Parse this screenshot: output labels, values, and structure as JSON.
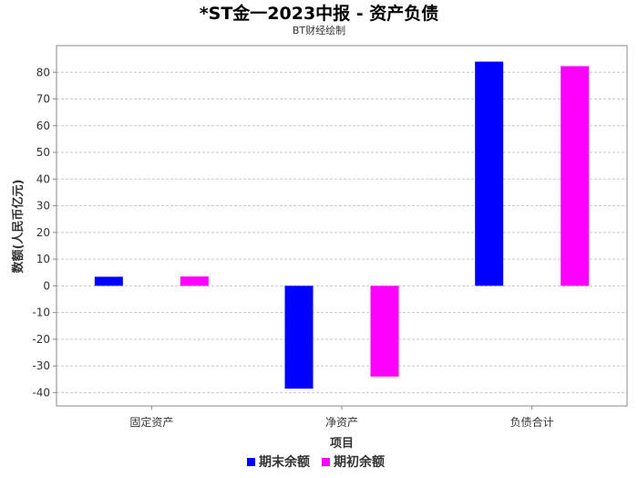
{
  "chart_data": {
    "type": "bar",
    "title": "*ST金一2023中报 - 资产负债",
    "subtitle": "BT财经绘制",
    "xlabel": "项目",
    "ylabel": "数额(人民币亿元)",
    "categories": [
      "固定资产",
      "净资产",
      "负债合计"
    ],
    "series": [
      {
        "name": "期末余额",
        "values": [
          3.4,
          -38.5,
          84.0
        ],
        "color": "#0000ff"
      },
      {
        "name": "期初余额",
        "values": [
          3.5,
          -34.0,
          82.3
        ],
        "color": "#ff00ff"
      }
    ],
    "ylim": [
      -45,
      90
    ],
    "yticks": [
      -40,
      -30,
      -20,
      -10,
      0,
      10,
      20,
      30,
      40,
      50,
      60,
      70,
      80
    ],
    "grid": true,
    "legend_position": "bottom"
  }
}
